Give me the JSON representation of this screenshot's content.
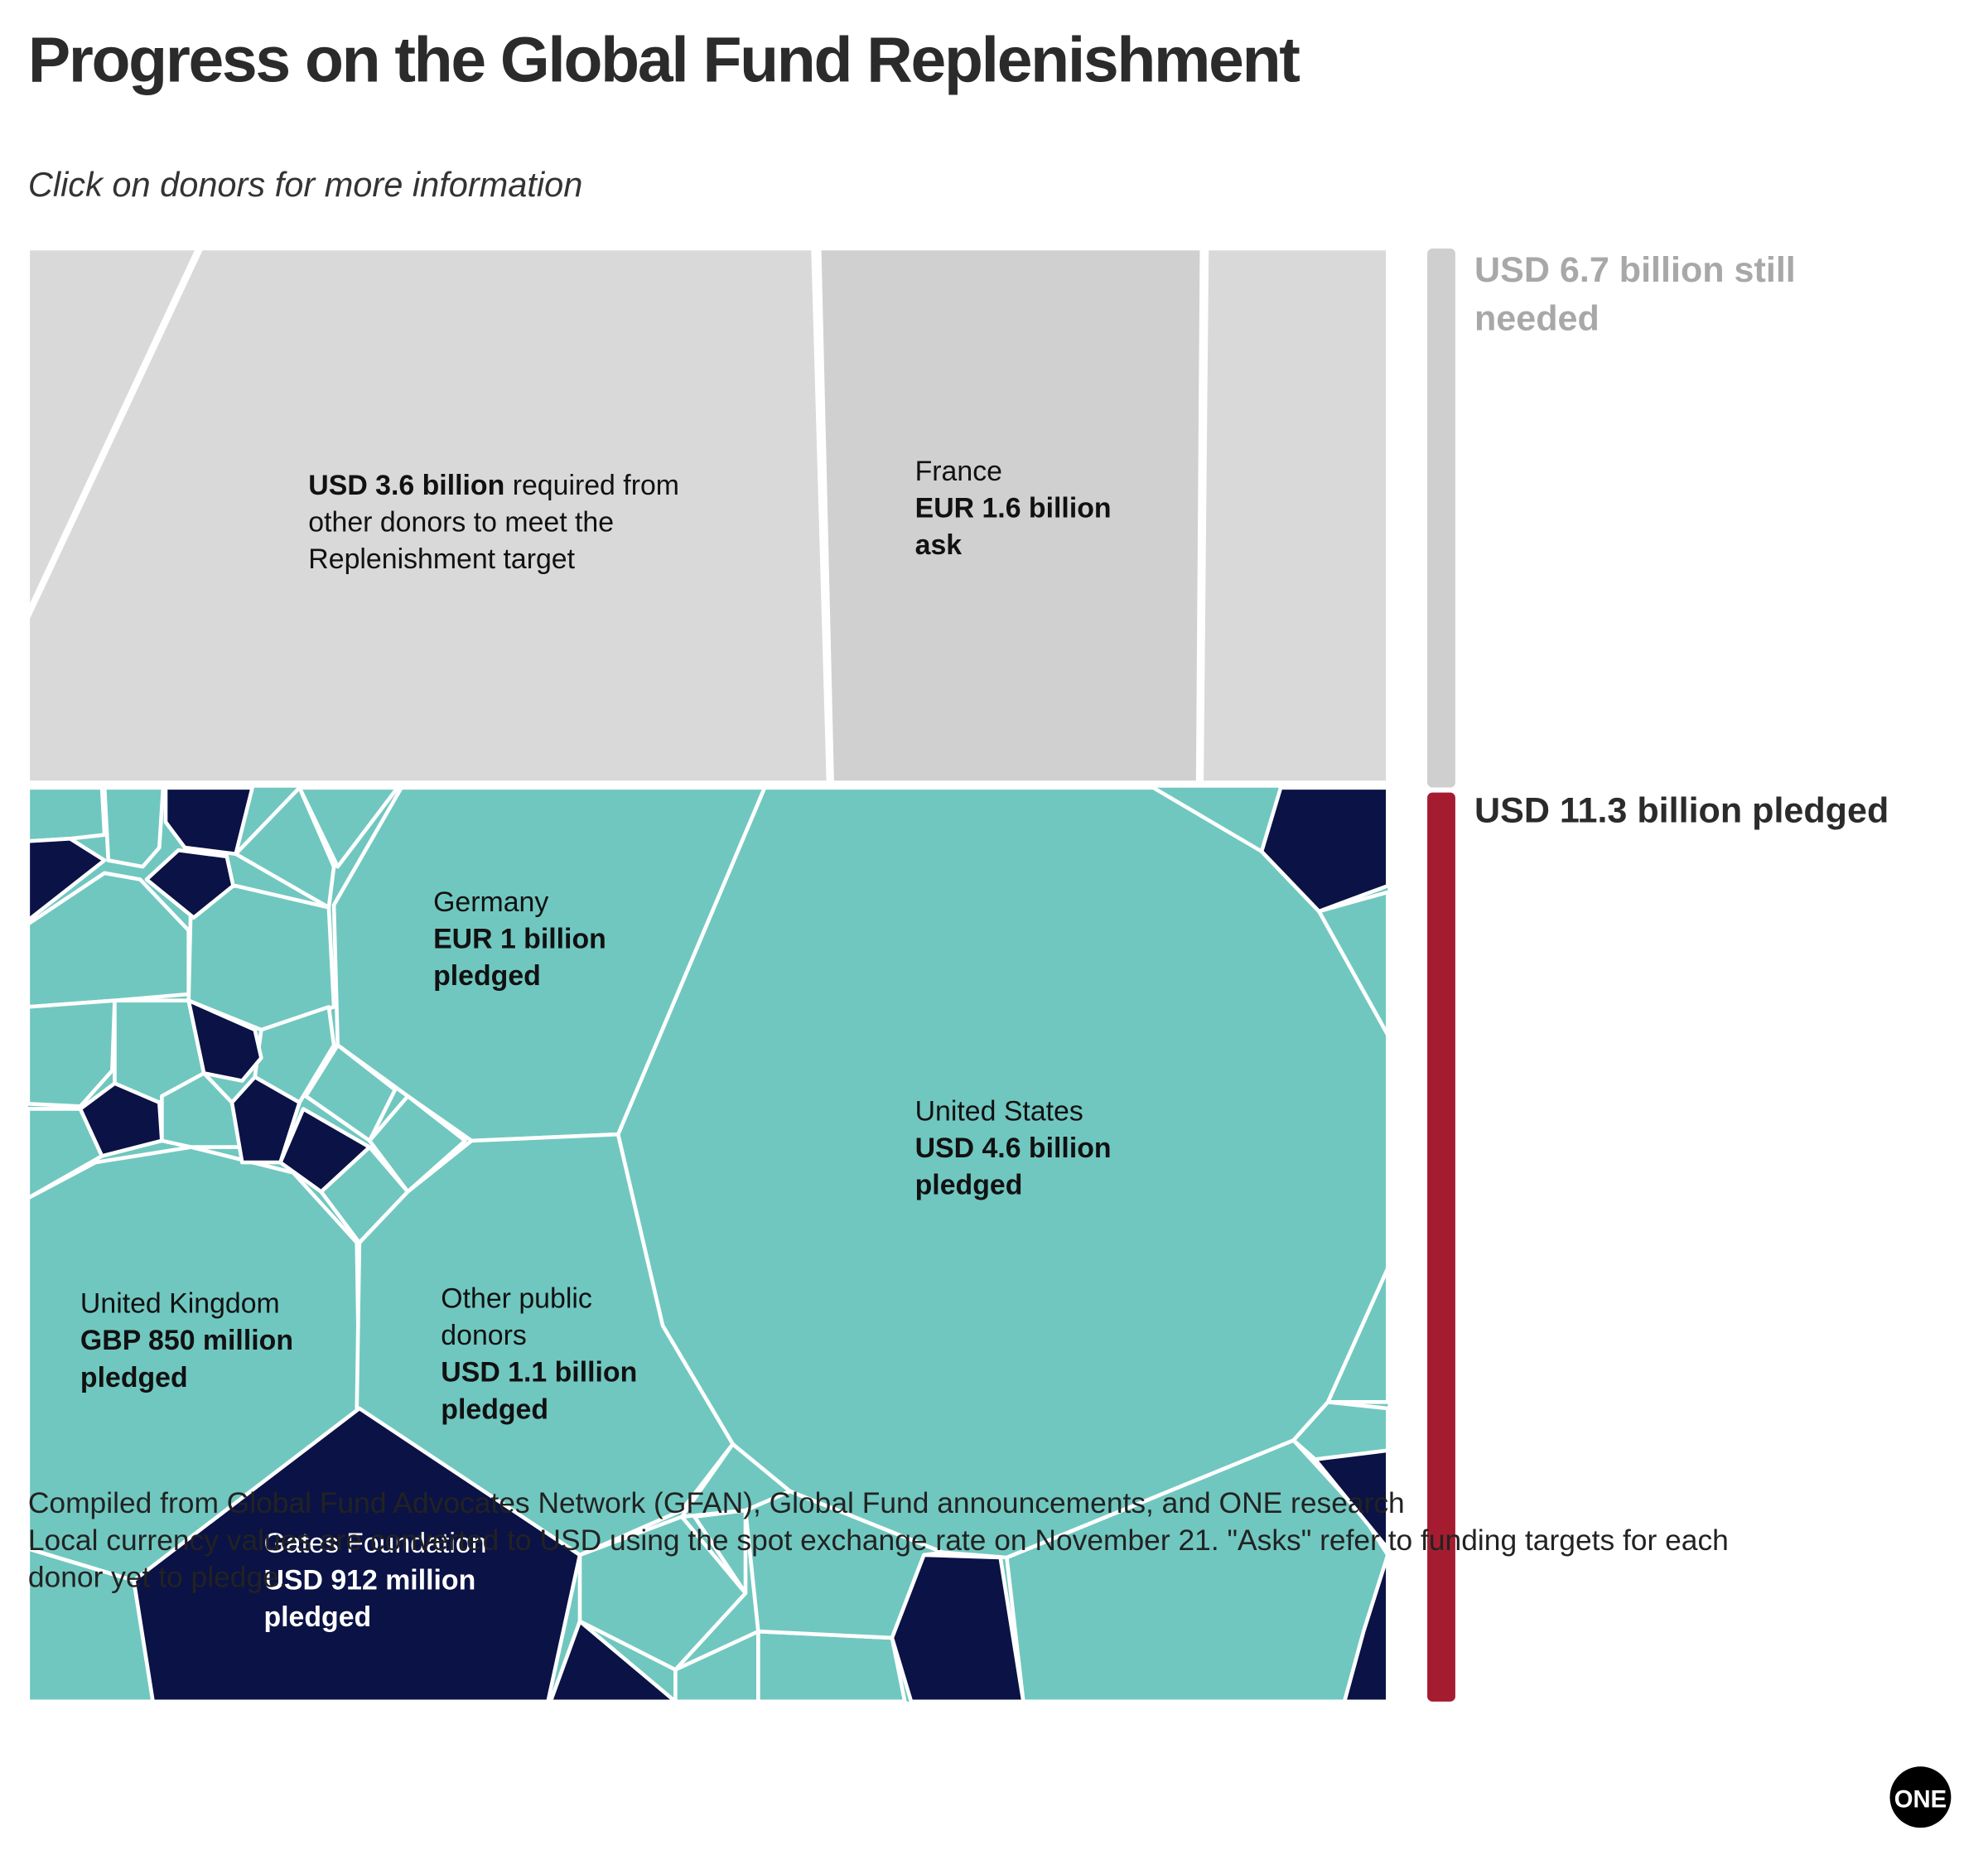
{
  "chart_data": {
    "type": "voronoi-treemap",
    "title": "Progress on the Global Fund Replenishment",
    "subtitle": "Click on donors for more information",
    "remaining": {
      "amount": "USD 3.6 billion",
      "note": "required from other donors to meet the Replenishment target"
    },
    "donors": [
      {
        "name": "France",
        "amount": "EUR 1.6 billion ask"
      },
      {
        "name": "Germany",
        "amount": "EUR 1 billion pledged"
      },
      {
        "name": "United States",
        "amount": "USD 4.6 billion pledged"
      },
      {
        "name": "United Kingdom",
        "amount": "GBP 850 million pledged"
      },
      {
        "name": "Other public donors",
        "amount": "USD 1.1 billion pledged"
      },
      {
        "name": "Gates Foundation",
        "amount": "USD 912 million pledged"
      }
    ],
    "summary": {
      "values": [
        11.3,
        6.7
      ],
      "value_labels": [
        "USD 11.3 billion pledged",
        "USD 6.7 billion still needed"
      ],
      "colors": [
        "#a51c30",
        "#cfcfcf"
      ]
    },
    "notes": [
      "Compiled from Global Fund Advocates Network (GFAN), Global Fund announcements, and ONE research",
      "Local currency values are converted to USD using the spot exchange rate on November 21. \"Asks\" refer to funding targets for each donor yet to pledge."
    ],
    "logo": "ONE"
  }
}
